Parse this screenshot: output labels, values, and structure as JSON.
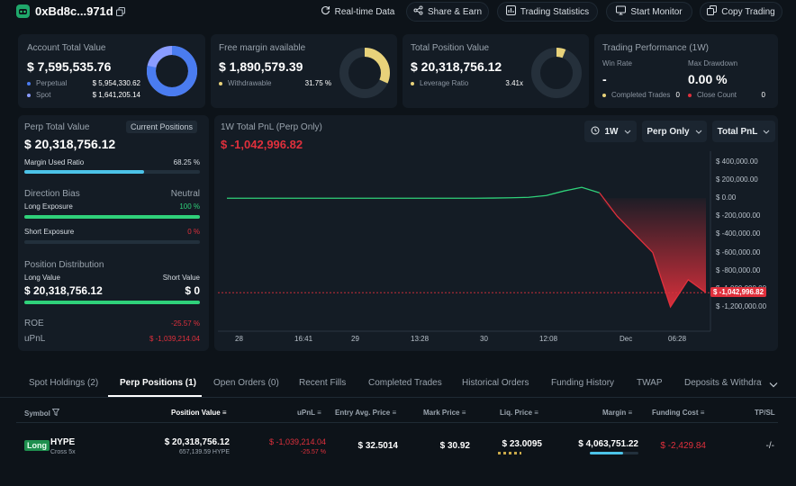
{
  "header": {
    "address": "0xBd8c...971d",
    "buttons": {
      "realtime": "Real-time Data",
      "share": "Share & Earn",
      "stats": "Trading Statistics",
      "monitor": "Start Monitor",
      "copy": "Copy Trading"
    }
  },
  "account": {
    "title": "Account Total Value",
    "value": "$ 7,595,535.76",
    "perpetual_label": "Perpetual",
    "perpetual_value": "$ 5,954,330.62",
    "spot_label": "Spot",
    "spot_value": "$ 1,641,205.14",
    "perp_share": 0.784
  },
  "margin": {
    "title": "Free margin available",
    "value": "$ 1,890,579.39",
    "withdrawable_label": "Withdrawable",
    "withdrawable_pct": "31.75 %",
    "ratio": 0.3175
  },
  "position": {
    "title": "Total Position Value",
    "value": "$ 20,318,756.12",
    "leverage_label": "Leverage Ratio",
    "leverage_value": "3.41x",
    "ratio": 0.06
  },
  "performance": {
    "title": "Trading Performance (1W)",
    "win_rate_label": "Win Rate",
    "win_rate_value": "-",
    "drawdown_label": "Max Drawdown",
    "drawdown_value": "0.00 %",
    "completed_label": "Completed Trades",
    "completed_value": "0",
    "close_label": "Close Count",
    "close_value": "0"
  },
  "perp_panel": {
    "title": "Perp Total Value",
    "current_positions": "Current Positions",
    "value": "$ 20,318,756.12",
    "margin_used_label": "Margin Used Ratio",
    "margin_used_pct": "68.25 %",
    "margin_used": 0.6825,
    "direction_label": "Direction Bias",
    "direction_value": "Neutral",
    "long_label": "Long Exposure",
    "long_pct": "100 %",
    "long_ratio": 1.0,
    "short_label": "Short Exposure",
    "short_pct": "0 %",
    "short_ratio": 0.0,
    "distribution_label": "Position Distribution",
    "long_value_label": "Long Value",
    "short_value_label": "Short Value",
    "long_value": "$ 20,318,756.12",
    "short_value": "$ 0",
    "roe_label": "ROE",
    "roe_value": "-25.57 %",
    "upnl_label": "uPnL",
    "upnl_value": "$ -1,039,214.04"
  },
  "pnl_chart": {
    "title": "1W Total PnL (Perp Only)",
    "value": "$ -1,042,996.82",
    "dropdowns": {
      "period": "1W",
      "scope": "Perp Only",
      "metric": "Total PnL"
    }
  },
  "chart_data": {
    "type": "area",
    "title": "1W Total PnL (Perp Only)",
    "x_ticks": [
      "28",
      "16:41",
      "29",
      "13:28",
      "30",
      "12:08",
      "Dec",
      "06:28"
    ],
    "y_ticks": [
      "$ 400,000.00",
      "$ 200,000.00",
      "$ 0.00",
      "$ -200,000.00",
      "$ -400,000.00",
      "$ -600,000.00",
      "$ -800,000.00",
      "$ -1,000,000.00",
      "$ -1,200,000.00"
    ],
    "ylim": [
      -1250000,
      400000
    ],
    "current_label": "$ -1,042,996.82",
    "current_value": -1042996.82,
    "series": [
      {
        "name": "Total PnL",
        "x": [
          0,
          1,
          2,
          3,
          4,
          5,
          6,
          7,
          8,
          9,
          10,
          11,
          12,
          13,
          14,
          15,
          16,
          17,
          18,
          19,
          20,
          21,
          22,
          23,
          24,
          25,
          26,
          27
        ],
        "values": [
          0,
          0,
          0,
          0,
          0,
          0,
          0,
          0,
          0,
          0,
          0,
          0,
          0,
          0,
          0,
          2000,
          5000,
          10000,
          30000,
          80000,
          120000,
          60000,
          -200000,
          -400000,
          -600000,
          -1200000,
          -900000,
          -1042996.82
        ]
      }
    ]
  },
  "tabs": {
    "items": [
      "Spot Holdings (2)",
      "Perp Positions (1)",
      "Open Orders (0)",
      "Recent Fills",
      "Completed Trades",
      "Historical Orders",
      "Funding History",
      "TWAP",
      "Deposits & Withdraw"
    ]
  },
  "table": {
    "headers": {
      "symbol": "Symbol",
      "position_value": "Position Value",
      "upnl": "uPnL",
      "entry": "Entry Avg. Price",
      "mark": "Mark Price",
      "liq": "Liq. Price",
      "margin": "Margin",
      "funding": "Funding Cost",
      "tpsl": "TP/SL"
    },
    "row": {
      "side": "Long",
      "symbol": "HYPE",
      "mode": "Cross 5x",
      "position_value": "$ 20,318,756.12",
      "position_size": "657,139.59 HYPE",
      "upnl": "$ -1,039,214.04",
      "upnl_pct": "-25.57 %",
      "entry": "$ 32.5014",
      "mark": "$ 30.92",
      "liq": "$ 23.0095",
      "margin": "$ 4,063,751.22",
      "margin_ratio": 0.68,
      "funding": "$ -2,429.84",
      "tpsl": "-/-"
    }
  },
  "colors": {
    "accent_blue": "#4a7cf0",
    "yellow": "#e8d27a",
    "green": "#2fd17a",
    "red": "#e0303c"
  }
}
